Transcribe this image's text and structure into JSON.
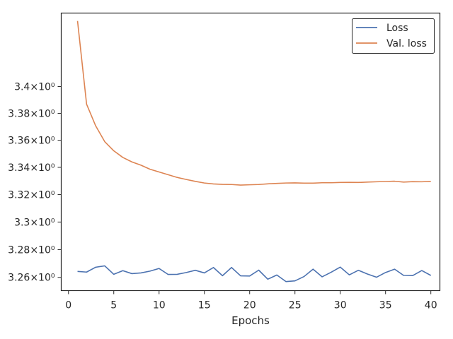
{
  "chart_data": {
    "type": "line",
    "xlabel": "Epochs",
    "ylabel": "",
    "yscale": "log",
    "xlim": [
      -0.8,
      41.0
    ],
    "ylim": [
      3.2505,
      3.4555
    ],
    "xticks": [
      0,
      5,
      10,
      15,
      20,
      25,
      30,
      35,
      40
    ],
    "xtick_labels": [
      "0",
      "5",
      "10",
      "15",
      "20",
      "25",
      "30",
      "35",
      "40"
    ],
    "yticks": [
      3.26,
      3.28,
      3.3,
      3.32,
      3.34,
      3.36,
      3.38,
      3.4
    ],
    "ytick_labels": [
      "3.26×10⁰",
      "3.28×10⁰",
      "3.3×10⁰",
      "3.32×10⁰",
      "3.34×10⁰",
      "3.36×10⁰",
      "3.38×10⁰",
      "3.4×10⁰"
    ],
    "legend_position": "top-right",
    "x": [
      1,
      2,
      3,
      4,
      5,
      6,
      7,
      8,
      9,
      10,
      11,
      12,
      13,
      14,
      15,
      16,
      17,
      18,
      19,
      20,
      21,
      22,
      23,
      24,
      25,
      26,
      27,
      28,
      29,
      30,
      31,
      32,
      33,
      34,
      35,
      36,
      37,
      38,
      39,
      40
    ],
    "series": [
      {
        "name": "Loss",
        "color": "#4c72b0",
        "values": [
          3.2643,
          3.2638,
          3.2673,
          3.2683,
          3.2622,
          3.2648,
          3.2627,
          3.2632,
          3.2645,
          3.2664,
          3.2621,
          3.2622,
          3.2635,
          3.2651,
          3.2632,
          3.2671,
          3.2612,
          3.2671,
          3.2611,
          3.261,
          3.2652,
          3.2587,
          3.2617,
          3.257,
          3.2575,
          3.2606,
          3.2659,
          3.2604,
          3.2637,
          3.2674,
          3.2618,
          3.2651,
          3.2624,
          3.2601,
          3.2635,
          3.2659,
          3.2614,
          3.2613,
          3.2649,
          3.2614
        ]
      },
      {
        "name": "Val. loss",
        "color": "#dd8452",
        "values": [
          3.4495,
          3.3868,
          3.3707,
          3.359,
          3.3522,
          3.3473,
          3.344,
          3.3416,
          3.3386,
          3.3366,
          3.3346,
          3.3326,
          3.3311,
          3.3297,
          3.3285,
          3.3278,
          3.3275,
          3.3274,
          3.327,
          3.3272,
          3.3274,
          3.3279,
          3.3282,
          3.3285,
          3.3286,
          3.3284,
          3.3284,
          3.3287,
          3.3287,
          3.3289,
          3.329,
          3.3289,
          3.3292,
          3.3294,
          3.3296,
          3.3298,
          3.3292,
          3.3295,
          3.3294,
          3.3297
        ]
      }
    ]
  }
}
